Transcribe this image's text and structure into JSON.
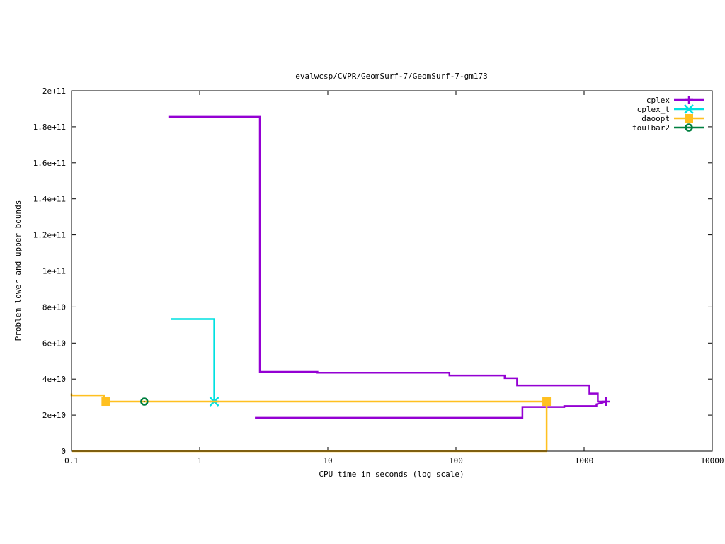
{
  "chart_data": {
    "type": "line",
    "title": "evalwcsp/CVPR/GeomSurf-7/GeomSurf-7-gm173",
    "xlabel": "CPU time in seconds (log scale)",
    "ylabel": "Problem lower and upper bounds",
    "xscale": "log",
    "xlim": [
      0.1,
      10000
    ],
    "ylim": [
      0,
      200000000000
    ],
    "x_ticks": [
      {
        "value": 0.1,
        "label": "0.1"
      },
      {
        "value": 1,
        "label": "1"
      },
      {
        "value": 10,
        "label": "10"
      },
      {
        "value": 100,
        "label": "100"
      },
      {
        "value": 1000,
        "label": "1000"
      },
      {
        "value": 10000,
        "label": "10000"
      }
    ],
    "y_ticks": [
      {
        "value": 0,
        "label": "0"
      },
      {
        "value": 20000000000,
        "label": "2e+10"
      },
      {
        "value": 40000000000,
        "label": "4e+10"
      },
      {
        "value": 60000000000,
        "label": "6e+10"
      },
      {
        "value": 80000000000,
        "label": "8e+10"
      },
      {
        "value": 100000000000,
        "label": "1e+11"
      },
      {
        "value": 120000000000,
        "label": "1.2e+11"
      },
      {
        "value": 140000000000,
        "label": "1.4e+11"
      },
      {
        "value": 160000000000,
        "label": "1.6e+11"
      },
      {
        "value": 180000000000,
        "label": "1.8e+11"
      },
      {
        "value": 200000000000,
        "label": "2e+11"
      }
    ],
    "legend_position": "top-right",
    "grid": false,
    "series": [
      {
        "name": "cplex",
        "color": "#9400d3",
        "marker": "plus",
        "lines": [
          {
            "role": "upper bound",
            "points": [
              [
                0.57,
                185500000000
              ],
              [
                2.95,
                185500000000
              ],
              [
                2.95,
                44000000000
              ],
              [
                8.3,
                44000000000
              ],
              [
                8.3,
                43500000000
              ],
              [
                89,
                43500000000
              ],
              [
                89,
                42000000000
              ],
              [
                240,
                42000000000
              ],
              [
                240,
                40500000000
              ],
              [
                300,
                40500000000
              ],
              [
                300,
                36500000000
              ],
              [
                1100,
                36500000000
              ],
              [
                1100,
                32000000000
              ],
              [
                1280,
                32000000000
              ],
              [
                1280,
                27500000000
              ],
              [
                1480,
                27500000000
              ]
            ]
          },
          {
            "role": "lower bound",
            "points": [
              [
                2.7,
                18500000000
              ],
              [
                330,
                18500000000
              ],
              [
                330,
                24500000000
              ],
              [
                700,
                24500000000
              ],
              [
                700,
                25000000000
              ],
              [
                1250,
                25000000000
              ],
              [
                1250,
                26000000000
              ],
              [
                1480,
                27500000000
              ]
            ]
          }
        ],
        "markers": [
          [
            1480,
            27500000000
          ]
        ]
      },
      {
        "name": "cplex_t",
        "color": "#00e0e0",
        "marker": "star",
        "lines": [
          {
            "role": "upper bound",
            "points": [
              [
                0.6,
                73300000000
              ],
              [
                1.3,
                73300000000
              ],
              [
                1.3,
                27500000000
              ]
            ]
          }
        ],
        "markers": [
          [
            1.3,
            27500000000
          ]
        ]
      },
      {
        "name": "daoopt",
        "color": "#ffc020",
        "marker": "square",
        "lines": [
          {
            "role": "upper bound",
            "points": [
              [
                0.1,
                32000000000
              ],
              [
                0.1,
                31000000000
              ],
              [
                0.18,
                31000000000
              ],
              [
                0.18,
                27500000000
              ],
              [
                510,
                27500000000
              ],
              [
                510,
                0
              ]
            ]
          },
          {
            "role": "lower bound",
            "points": [
              [
                0.1,
                0
              ],
              [
                510,
                0
              ]
            ]
          }
        ],
        "markers": [
          [
            0.185,
            27500000000
          ],
          [
            510,
            27500000000
          ]
        ]
      },
      {
        "name": "toulbar2",
        "color": "#008040",
        "marker": "circle",
        "lines": [],
        "markers": [
          [
            0.37,
            27500000000
          ]
        ]
      }
    ]
  }
}
